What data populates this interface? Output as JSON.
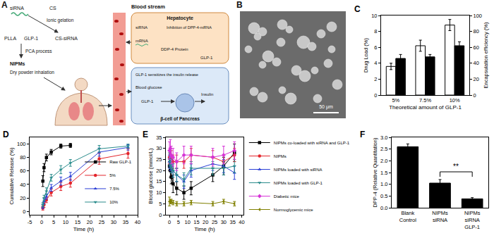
{
  "diagram": {
    "title": "A",
    "siRNA": "siRNA",
    "CS": "CS",
    "PLLA": "PLLA",
    "GLP1": "GLP-1",
    "ionic_gelation": "Ionic gelation",
    "cs_sirna": "CS-siRNA",
    "pca": "PCA process",
    "nipms": "NIPMs",
    "inhalation": "Dry powder inhalation",
    "blood_stream": "Blood stream",
    "hepatocyte": "Hepatocyte",
    "hep_sirna": "siRNA",
    "inhibition": "Inhibition of DPP-4-mRNA",
    "mrna": "mRNA",
    "protein": "DDP-4 Protein",
    "hep_glp1": "GLP-1",
    "sensitizes": "GLP-1 sensitizes the insulin release",
    "blood_glucose": "Blood glucose",
    "panc_glp1": "GLP-1",
    "insulin": "Insulin",
    "beta_cell": "β-cell of Pancreas"
  },
  "image": {
    "title": "B",
    "scale_bar": "50 μm"
  },
  "chart_data": [
    {
      "type": "bar",
      "title": "C",
      "xlabel": "Theoretical amount of GLP-1",
      "ylabel": "Drug Load (%)",
      "y2label": "Encapsulation efficiency (%)",
      "categories": [
        "5%",
        "7.5%",
        "10%"
      ],
      "series": [
        {
          "color": "#ffffff",
          "values": [
            3.6,
            6.2,
            8.8
          ],
          "errors": [
            0.4,
            0.7,
            0.7
          ]
        },
        {
          "color": "#000000",
          "axis": "y2",
          "values": [
            46,
            48,
            62
          ],
          "errors": [
            5,
            3,
            5
          ]
        }
      ],
      "ylim": [
        0,
        10
      ],
      "yticks": [
        0,
        2,
        4,
        6,
        8,
        10
      ],
      "y2lim": [
        0,
        100
      ],
      "y2ticks": [
        0,
        20,
        40,
        60,
        80,
        100
      ]
    },
    {
      "type": "line",
      "title": "D",
      "xlabel": "Time (h)",
      "ylabel": "Cumulative Release (%)",
      "xlim": [
        -5,
        40
      ],
      "xticks": [
        -5,
        0,
        5,
        10,
        15,
        20,
        25,
        30,
        35,
        40
      ],
      "ylim": [
        -5,
        110
      ],
      "yticks": [
        0,
        20,
        40,
        60,
        80,
        100
      ],
      "legend": "lower right",
      "series": [
        {
          "name": "Raw GLP-1",
          "color": "#000000",
          "marker": "square",
          "line_style": "solid",
          "x": [
            0.5,
            1,
            2,
            4,
            8,
            12
          ],
          "values": [
            45,
            65,
            80,
            88,
            97,
            98
          ],
          "errors": [
            8,
            6,
            5,
            4,
            3,
            3
          ]
        },
        {
          "name": "5%",
          "color": "#e3242b",
          "marker": "circle",
          "line_style": "solid",
          "x": [
            0.5,
            1,
            2,
            4,
            8,
            12,
            24,
            36
          ],
          "values": [
            5,
            10,
            17,
            28,
            37,
            42,
            78,
            86
          ],
          "errors": [
            3,
            4,
            4,
            5,
            6,
            6,
            8,
            7
          ]
        },
        {
          "name": "7.5%",
          "color": "#2b3fd6",
          "marker": "triangle-up",
          "line_style": "solid",
          "x": [
            0.5,
            1,
            2,
            4,
            8,
            12,
            24,
            36
          ],
          "values": [
            7,
            15,
            22,
            35,
            45,
            52,
            88,
            95
          ],
          "errors": [
            3,
            4,
            4,
            5,
            6,
            6,
            6,
            4
          ]
        },
        {
          "name": "10%",
          "color": "#2a8c8c",
          "marker": "triangle-down",
          "line_style": "solid",
          "x": [
            0.5,
            1,
            2,
            4,
            8,
            12,
            24,
            36
          ],
          "values": [
            10,
            20,
            30,
            50,
            62,
            72,
            93,
            97
          ],
          "errors": [
            3,
            4,
            5,
            5,
            6,
            5,
            5,
            3
          ]
        }
      ]
    },
    {
      "type": "line",
      "title": "E",
      "xlabel": "Time (h)",
      "ylabel": "Blood glucose (mmol/L)",
      "xlim": [
        -2,
        41
      ],
      "xticks": [
        0,
        5,
        10,
        15,
        20,
        25,
        30,
        35,
        40
      ],
      "ylim": [
        0,
        35
      ],
      "yticks": [
        0,
        5,
        10,
        15,
        20,
        25,
        30,
        35
      ],
      "legend": "right",
      "series": [
        {
          "name": "NIPMs co-loaded with siRNA and GLP-1",
          "color": "#000000",
          "marker": "square",
          "line_style": "solid",
          "x": [
            0,
            0.5,
            1,
            2,
            4,
            8,
            12,
            24,
            30,
            36
          ],
          "values": [
            22,
            20,
            17,
            14,
            12,
            10,
            12,
            18,
            22,
            28
          ],
          "errors": [
            2,
            3,
            3,
            4,
            3,
            3,
            3,
            3,
            4,
            4
          ]
        },
        {
          "name": "NIPMs",
          "color": "#e3242b",
          "marker": "circle",
          "line_style": "solid",
          "x": [
            0,
            0.5,
            1,
            2,
            4,
            8,
            12,
            24,
            30,
            36
          ],
          "values": [
            26,
            27,
            26,
            24,
            24,
            24,
            27,
            26,
            24,
            27
          ],
          "errors": [
            3,
            3,
            3,
            3,
            3,
            3,
            3,
            3,
            3,
            3
          ]
        },
        {
          "name": "NIPMs loaded with siRNA",
          "color": "#2b3fd6",
          "marker": "triangle-up",
          "line_style": "solid",
          "x": [
            0,
            0.5,
            1,
            2,
            4,
            8,
            12,
            24,
            30,
            36
          ],
          "values": [
            24,
            23,
            22,
            20,
            18,
            15,
            20,
            23,
            22,
            19
          ],
          "errors": [
            3,
            3,
            3,
            3,
            3,
            3,
            3,
            3,
            3,
            3
          ]
        },
        {
          "name": "NIPMs loaded with GLP-1",
          "color": "#2a8c8c",
          "marker": "triangle-down",
          "line_style": "solid",
          "x": [
            0,
            0.5,
            1,
            2,
            4,
            8,
            12,
            24,
            30,
            36
          ],
          "values": [
            25,
            24,
            22,
            20,
            18,
            16,
            21,
            21,
            21,
            22
          ],
          "errors": [
            3,
            3,
            3,
            3,
            3,
            3,
            3,
            3,
            3,
            3
          ]
        },
        {
          "name": "Diabetic mice",
          "color": "#d633d6",
          "marker": "diamond",
          "line_style": "solid",
          "x": [
            0,
            0.5,
            1,
            2,
            4,
            8,
            12,
            24,
            30,
            36
          ],
          "values": [
            29,
            30,
            27,
            26,
            24,
            27,
            27,
            26,
            27,
            29
          ],
          "errors": [
            4,
            4,
            4,
            4,
            4,
            4,
            4,
            4,
            4,
            4
          ]
        },
        {
          "name": "Normoglycemic mice",
          "color": "#808000",
          "marker": "triangle-left",
          "line_style": "solid",
          "x": [
            0,
            0.5,
            1,
            2,
            4,
            8,
            12,
            24,
            30,
            36
          ],
          "values": [
            6,
            6,
            6,
            5.5,
            5,
            5,
            5.5,
            5,
            6,
            5
          ],
          "errors": [
            2,
            1,
            1,
            1,
            1,
            1,
            1,
            1,
            1,
            1
          ]
        }
      ]
    },
    {
      "type": "bar",
      "title": "F",
      "ylabel": "DPP-4 (Relative Quantitation)",
      "categories": [
        "Blank Control",
        "NIPMs siRNA",
        "NIPMs siRNA GLP-1"
      ],
      "series": [
        {
          "color": "#000000",
          "values": [
            2.6,
            1.05,
            0.38
          ],
          "errors": [
            0.12,
            0.15,
            0.05
          ]
        }
      ],
      "ylim": [
        0,
        3
      ],
      "yticks": [
        {
          "value": 0,
          "label": "0.0"
        },
        {
          "value": 0.5,
          "label": "0.5"
        },
        {
          "value": 1,
          "label": "1.0"
        },
        {
          "value": 1.5,
          "label": "1.5"
        },
        {
          "value": 2,
          "label": "2.0"
        },
        {
          "value": 2.5,
          "label": "2.5"
        },
        {
          "value": 3,
          "label": "3.0"
        }
      ],
      "annotations": [
        {
          "text": "**",
          "categories": [
            "NIPMs siRNA",
            "NIPMs siRNA GLP-1"
          ]
        }
      ]
    }
  ]
}
